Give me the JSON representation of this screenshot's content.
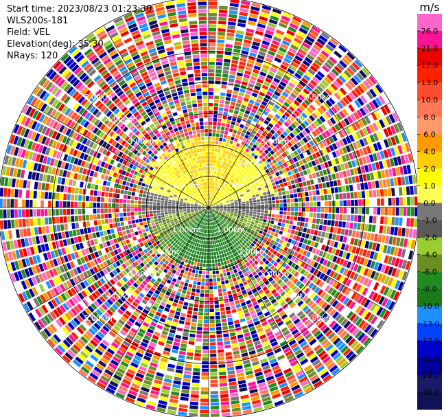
{
  "header": {
    "start_time": "Start time: 2023/08/23 01:23:30",
    "instrument": "WLS200s-181",
    "field": "Field: VEL",
    "elevation": "Elevation(deg): 35.30",
    "nrays": "NRays: 120"
  },
  "chart_data": {
    "type": "heatmap",
    "projection": "polar PPI",
    "field": "VEL",
    "units": "m/s",
    "nrays": 120,
    "range_rings_km": [
      1.0,
      2.0,
      3.0,
      4.0,
      5.0
    ],
    "ring_labels": [
      "1.00km",
      "2.00km",
      "3.00km",
      "4.00km",
      "5.00km"
    ],
    "colorbar": {
      "label": "m/s",
      "ticks": [
        "26.0",
        "21.0",
        "17.0",
        "13.0",
        "10.0",
        "8.0",
        "6.0",
        "4.0",
        "2.0",
        "1.0",
        "0.0",
        "-1.0",
        "-2.0",
        "-4.0",
        "-6.0",
        "-8.0",
        "-10.0",
        "-13.0",
        "-17.0",
        "-21.0",
        "-26.0",
        "-30.0"
      ],
      "colors": [
        "#ff66cc",
        "#ff1493",
        "#ee0000",
        "#ff2200",
        "#ff4c2e",
        "#ff7755",
        "#ff9a6a",
        "#ff9900",
        "#ffcc00",
        "#ffff00",
        "#ffff55",
        "#777777",
        "#5a5a5a",
        "#9acd32",
        "#6b8e23",
        "#228b22",
        "#1a7a1a",
        "#1e90ff",
        "#0044ff",
        "#0000cc",
        "#000099",
        "#1a1a66",
        "#111155"
      ]
    },
    "velocity_field": {
      "clear_air_km": 1.9,
      "north_sector_ms": [
        2.0,
        6.0
      ],
      "south_sector_ms": [
        -8.0,
        -2.0
      ],
      "east_west_ms": [
        -1.0,
        1.0
      ],
      "beyond_clear_air": "noise"
    }
  }
}
